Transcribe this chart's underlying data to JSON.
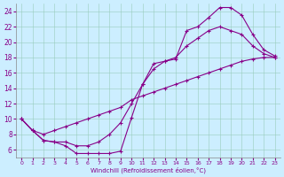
{
  "xlabel": "Windchill (Refroidissement éolien,°C)",
  "bg_color": "#cceeff",
  "line_color": "#880088",
  "xlim": [
    -0.5,
    23.5
  ],
  "ylim": [
    5.0,
    25.0
  ],
  "xticks": [
    0,
    1,
    2,
    3,
    4,
    5,
    6,
    7,
    8,
    9,
    10,
    11,
    12,
    13,
    14,
    15,
    16,
    17,
    18,
    19,
    20,
    21,
    22,
    23
  ],
  "yticks": [
    6,
    8,
    10,
    12,
    14,
    16,
    18,
    20,
    22,
    24
  ],
  "curve1_x": [
    0,
    1,
    2,
    3,
    4,
    5,
    6,
    7,
    8,
    9,
    10,
    11,
    12,
    13,
    14,
    15,
    16,
    17,
    18,
    19,
    20,
    21,
    22,
    23
  ],
  "curve1_y": [
    10.0,
    8.5,
    7.2,
    7.0,
    6.5,
    5.5,
    5.5,
    5.5,
    5.5,
    5.8,
    10.2,
    14.5,
    17.2,
    17.5,
    17.8,
    21.5,
    22.0,
    23.2,
    24.5,
    24.5,
    23.5,
    21.0,
    19.0,
    18.2
  ],
  "curve2_x": [
    0,
    1,
    2,
    3,
    4,
    5,
    6,
    7,
    8,
    9,
    10,
    11,
    12,
    13,
    14,
    15,
    16,
    17,
    18,
    19,
    20,
    21,
    22,
    23
  ],
  "curve2_y": [
    10.0,
    8.5,
    7.2,
    7.0,
    7.0,
    6.5,
    6.5,
    7.0,
    8.0,
    9.5,
    12.0,
    14.5,
    16.5,
    17.5,
    18.0,
    19.5,
    20.5,
    21.5,
    22.0,
    21.5,
    21.0,
    19.5,
    18.5,
    18.0
  ],
  "curve3_x": [
    0,
    1,
    2,
    3,
    4,
    5,
    6,
    7,
    8,
    9,
    10,
    11,
    12,
    13,
    14,
    15,
    16,
    17,
    18,
    19,
    20,
    21,
    22,
    23
  ],
  "curve3_y": [
    10.0,
    8.5,
    8.0,
    8.5,
    9.0,
    9.5,
    10.0,
    10.5,
    11.0,
    11.5,
    12.5,
    13.0,
    13.5,
    14.0,
    14.5,
    15.0,
    15.5,
    16.0,
    16.5,
    17.0,
    17.5,
    17.8,
    18.0,
    18.0
  ]
}
